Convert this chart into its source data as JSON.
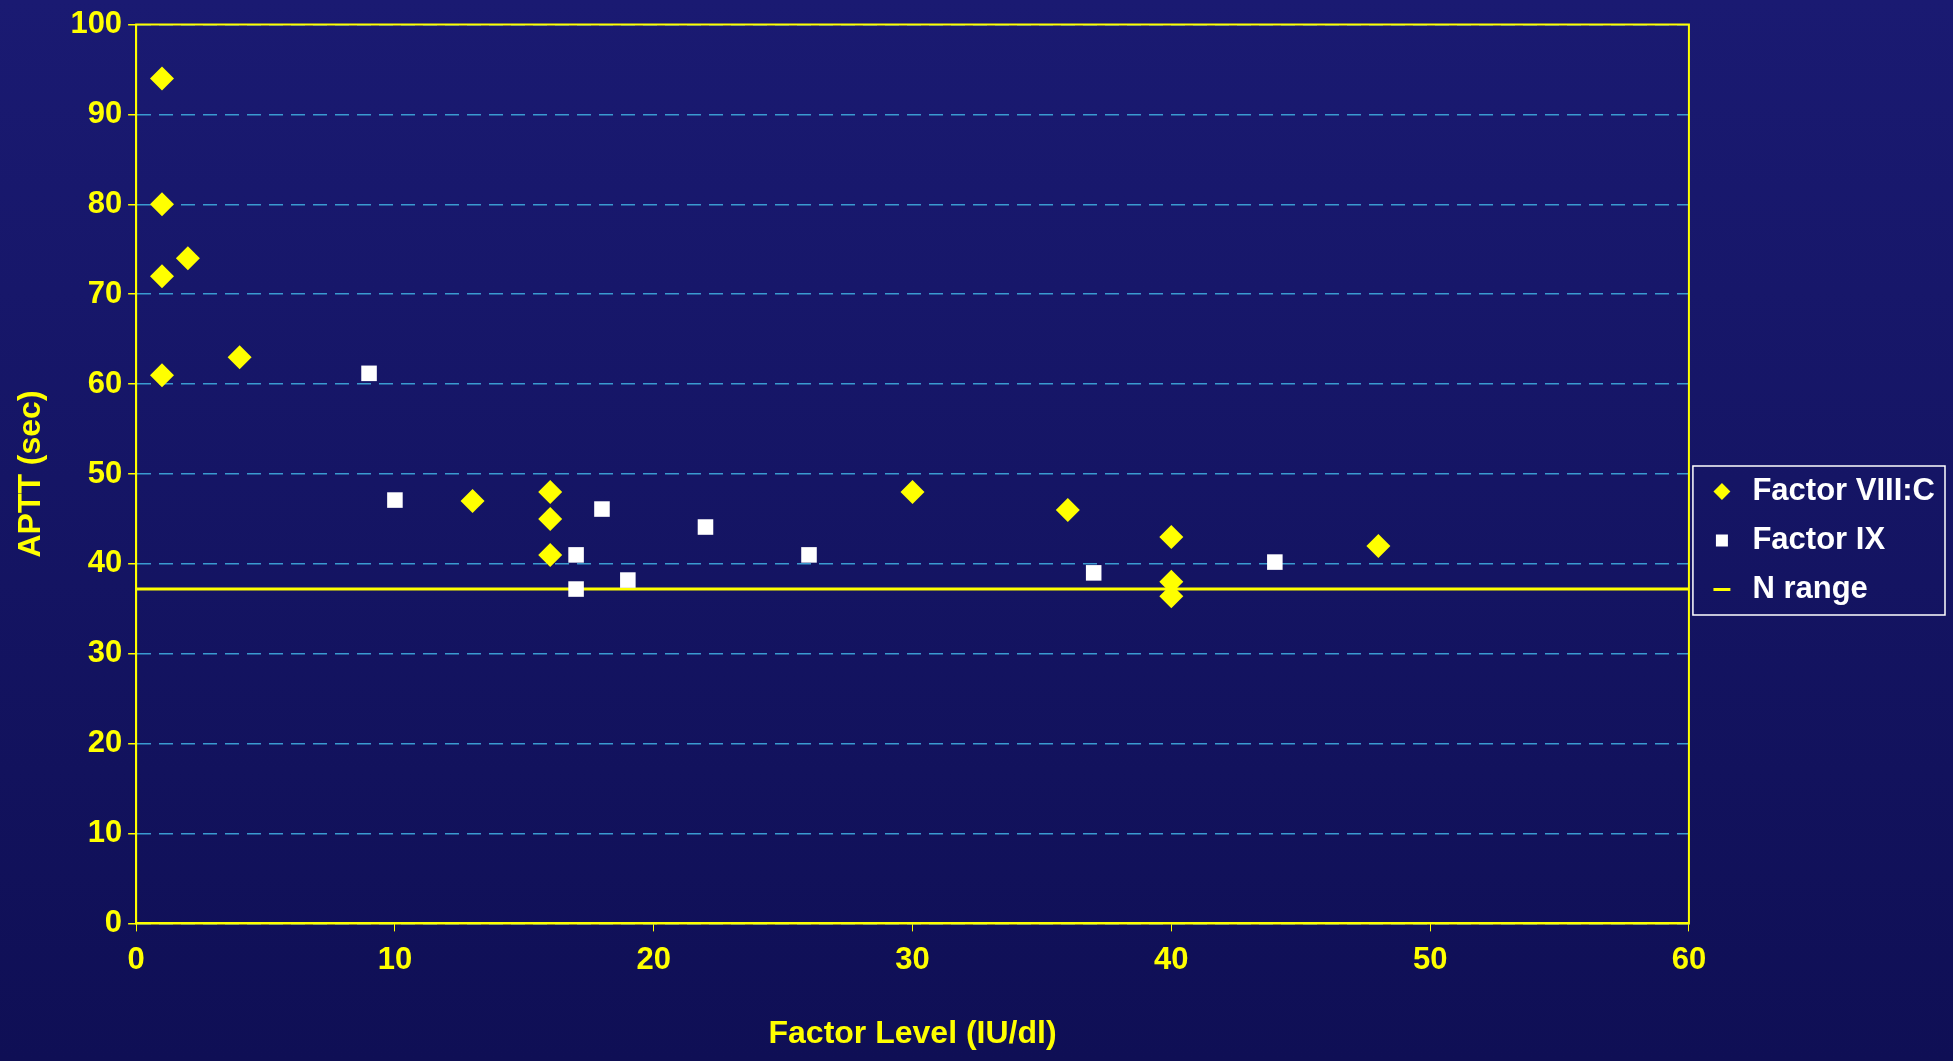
{
  "chart_data": {
    "type": "scatter",
    "xlabel": "Factor Level (IU/dl)",
    "ylabel": "APTT (sec)",
    "xlim": [
      0,
      60
    ],
    "xticks": [
      0,
      10,
      20,
      30,
      40,
      50,
      60
    ],
    "ylim": [
      0,
      100
    ],
    "yticks": [
      0,
      10,
      20,
      30,
      40,
      50,
      60,
      70,
      80,
      90,
      100
    ],
    "grid": "y",
    "legend": "right",
    "series": [
      {
        "name": "Factor VIII:C",
        "color": "#ffff00",
        "marker": "diamond",
        "x": [
          1,
          1,
          1,
          2,
          1,
          4,
          13,
          16,
          16,
          16,
          30,
          36,
          40,
          40,
          40,
          48
        ],
        "values": [
          94,
          80,
          72,
          74,
          61,
          63,
          47,
          48,
          45,
          41,
          48,
          46,
          43,
          38,
          36.4,
          42
        ]
      },
      {
        "name": "Factor IX",
        "color": "#ffffff",
        "marker": "square",
        "x": [
          9,
          10,
          17,
          17,
          18,
          19,
          22,
          26,
          37,
          44
        ],
        "values": [
          61.2,
          47.1,
          41,
          37.2,
          46.1,
          38.2,
          44.1,
          41,
          39,
          40.2
        ]
      },
      {
        "name": "N range",
        "type": "line",
        "color": "#ffff00",
        "marker": "none",
        "line_style": "solid",
        "x": [
          0,
          60
        ],
        "values": [
          37.2,
          37.2
        ]
      }
    ]
  }
}
